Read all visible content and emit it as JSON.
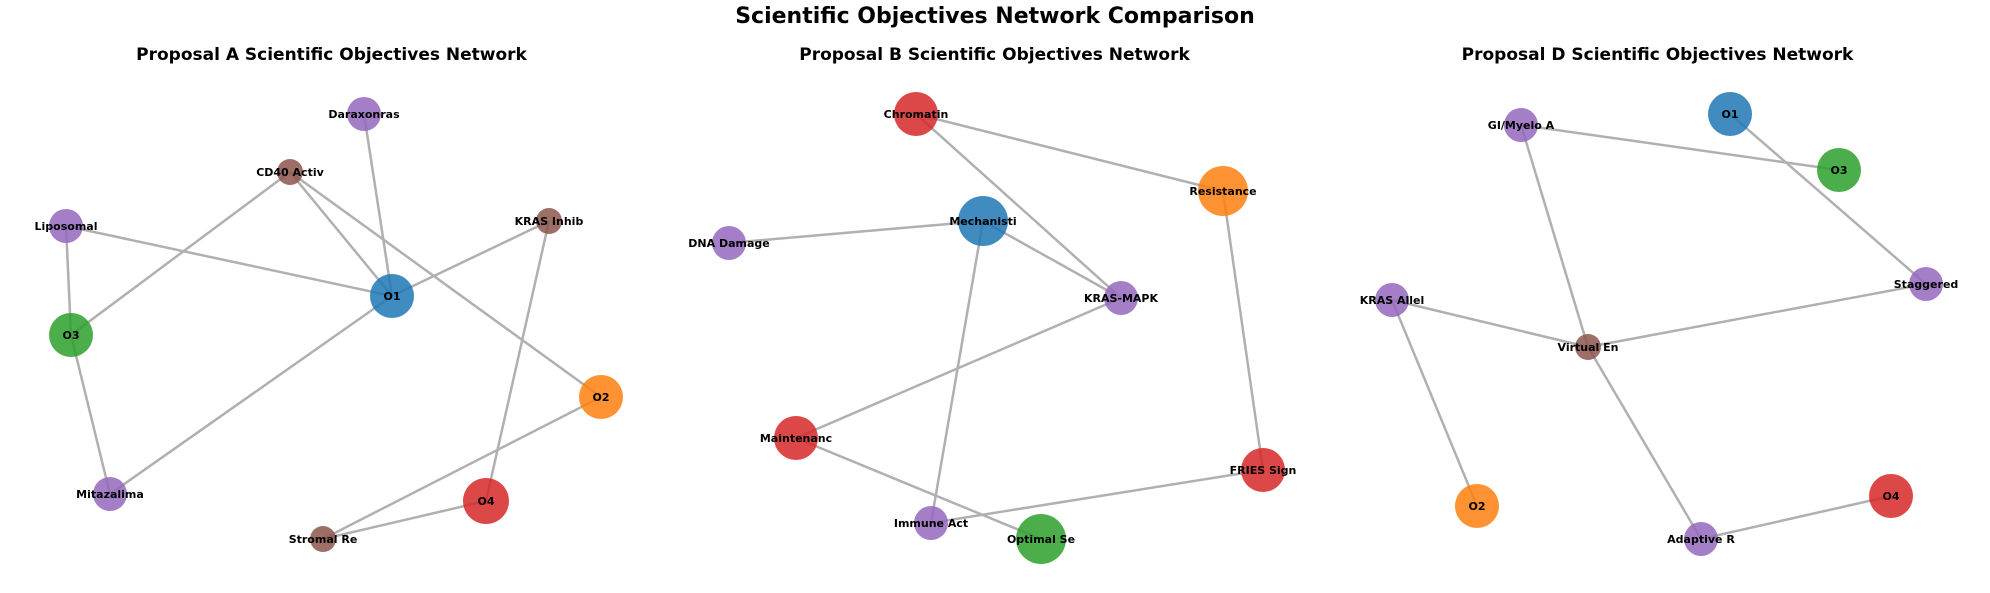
{
  "title": "Scientific Objectives Network Comparison",
  "colors": {
    "objective": "#1f77b4",
    "objective2": "#ff7f0e",
    "objective3": "#2ca02c",
    "objective4": "#d62728",
    "method": "#9467bd",
    "mechanism": "#8c564b",
    "edge": "#b0b0b0"
  },
  "panels": [
    {
      "title": "Proposal A Scientific Objectives Network",
      "nodes": [
        {
          "id": "Daraxonras",
          "label": "Daraxonras",
          "color": "#9467bd",
          "size": "small"
        },
        {
          "id": "CD40 Activ",
          "label": "CD40 Activ",
          "color": "#8c564b",
          "size": "tiny"
        },
        {
          "id": "Liposomal",
          "label": "Liposomal",
          "color": "#9467bd",
          "size": "small"
        },
        {
          "id": "KRAS Inhib",
          "label": "KRAS Inhib",
          "color": "#8c564b",
          "size": "tiny"
        },
        {
          "id": "O1",
          "label": "O1",
          "color": "#1f77b4",
          "size": "medium"
        },
        {
          "id": "O3",
          "label": "O3",
          "color": "#2ca02c",
          "size": "medium"
        },
        {
          "id": "O2",
          "label": "O2",
          "color": "#ff7f0e",
          "size": "medium"
        },
        {
          "id": "Mitazalima",
          "label": "Mitazalima",
          "color": "#9467bd",
          "size": "small"
        },
        {
          "id": "O4",
          "label": "O4",
          "color": "#d62728",
          "size": "large"
        },
        {
          "id": "Stromal Re",
          "label": "Stromal Re",
          "color": "#8c564b",
          "size": "tiny"
        }
      ],
      "edges": [
        [
          "Daraxonras",
          "O1"
        ],
        [
          "CD40 Activ",
          "O1"
        ],
        [
          "CD40 Activ",
          "O3"
        ],
        [
          "CD40 Activ",
          "O2"
        ],
        [
          "Liposomal",
          "O1"
        ],
        [
          "Liposomal",
          "O3"
        ],
        [
          "KRAS Inhib",
          "O1"
        ],
        [
          "KRAS Inhib",
          "O4"
        ],
        [
          "O1",
          "Mitazalima"
        ],
        [
          "O3",
          "Mitazalima"
        ],
        [
          "O2",
          "Stromal Re"
        ],
        [
          "O4",
          "Stromal Re"
        ]
      ]
    },
    {
      "title": "Proposal B Scientific Objectives Network",
      "nodes": [
        {
          "id": "Chromatin",
          "label": "Chromatin",
          "color": "#d62728",
          "size": "medium"
        },
        {
          "id": "Resistance",
          "label": "Resistance",
          "color": "#ff7f0e",
          "size": "xlarge"
        },
        {
          "id": "DNA Damage",
          "label": "DNA Damage",
          "color": "#9467bd",
          "size": "small"
        },
        {
          "id": "Mechanisti",
          "label": "Mechanisti",
          "color": "#1f77b4",
          "size": "xlarge"
        },
        {
          "id": "KRAS-MAPK",
          "label": "KRAS-MAPK",
          "color": "#9467bd",
          "size": "small"
        },
        {
          "id": "Maintenanc",
          "label": "Maintenanc",
          "color": "#d62728",
          "size": "medium"
        },
        {
          "id": "FRIES Sign",
          "label": "FRIES Sign",
          "color": "#d62728",
          "size": "medium"
        },
        {
          "id": "Immune Act",
          "label": "Immune Act",
          "color": "#9467bd",
          "size": "small"
        },
        {
          "id": "Optimal Se",
          "label": "Optimal Se",
          "color": "#2ca02c",
          "size": "xlarge"
        }
      ],
      "edges": [
        [
          "Chromatin",
          "Resistance"
        ],
        [
          "Chromatin",
          "KRAS-MAPK"
        ],
        [
          "DNA Damage",
          "Mechanisti"
        ],
        [
          "Mechanisti",
          "KRAS-MAPK"
        ],
        [
          "Mechanisti",
          "Immune Act"
        ],
        [
          "Resistance",
          "FRIES Sign"
        ],
        [
          "KRAS-MAPK",
          "Maintenanc"
        ],
        [
          "Maintenanc",
          "Optimal Se"
        ],
        [
          "FRIES Sign",
          "Immune Act"
        ]
      ]
    },
    {
      "title": "Proposal D Scientific Objectives Network",
      "nodes": [
        {
          "id": "O1",
          "label": "O1",
          "color": "#1f77b4",
          "size": "medium"
        },
        {
          "id": "GI/Myelo A",
          "label": "GI/Myelo A",
          "color": "#9467bd",
          "size": "small"
        },
        {
          "id": "O3",
          "label": "O3",
          "color": "#2ca02c",
          "size": "medium"
        },
        {
          "id": "Staggered",
          "label": "Staggered",
          "color": "#9467bd",
          "size": "small"
        },
        {
          "id": "KRAS Allel",
          "label": "KRAS Allel",
          "color": "#9467bd",
          "size": "small"
        },
        {
          "id": "Virtual En",
          "label": "Virtual En",
          "color": "#8c564b",
          "size": "tiny"
        },
        {
          "id": "O2",
          "label": "O2",
          "color": "#ff7f0e",
          "size": "medium"
        },
        {
          "id": "O4",
          "label": "O4",
          "color": "#d62728",
          "size": "medium"
        },
        {
          "id": "Adaptive R",
          "label": "Adaptive R",
          "color": "#9467bd",
          "size": "small"
        }
      ],
      "edges": [
        [
          "GI/Myelo A",
          "O3"
        ],
        [
          "GI/Myelo A",
          "Virtual En"
        ],
        [
          "O1",
          "Staggered"
        ],
        [
          "Staggered",
          "Virtual En"
        ],
        [
          "KRAS Allel",
          "Virtual En"
        ],
        [
          "KRAS Allel",
          "O2"
        ],
        [
          "Virtual En",
          "Adaptive R"
        ],
        [
          "Adaptive R",
          "O4"
        ]
      ]
    }
  ]
}
